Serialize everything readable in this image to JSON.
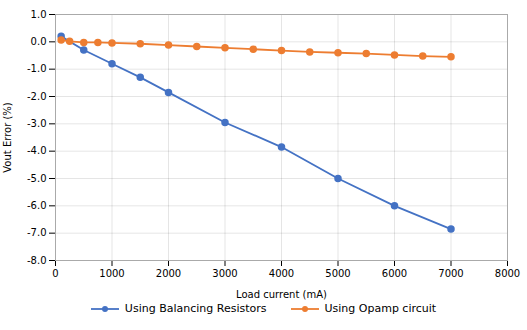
{
  "chart_data": {
    "type": "line",
    "xlabel": "Load current (mA)",
    "ylabel": "Vout Error (%)",
    "series": [
      {
        "name": "Using Balancing Resistors",
        "color": "#4472c4",
        "marker": "circle",
        "x": [
          100,
          500,
          1000,
          1500,
          2000,
          3000,
          4000,
          5000,
          6000,
          7000
        ],
        "values": [
          0.2,
          -0.3,
          -0.8,
          -1.3,
          -1.85,
          -2.95,
          -3.85,
          -5.0,
          -6.0,
          -6.85
        ]
      },
      {
        "name": "Using Opamp circuit",
        "color": "#ed7d31",
        "marker": "circle",
        "x": [
          100,
          250,
          500,
          750,
          1000,
          1500,
          2000,
          2500,
          3000,
          3500,
          4000,
          4500,
          5000,
          5500,
          6000,
          6500,
          7000
        ],
        "values": [
          0.07,
          0.02,
          -0.02,
          -0.02,
          -0.04,
          -0.07,
          -0.12,
          -0.17,
          -0.22,
          -0.27,
          -0.32,
          -0.37,
          -0.4,
          -0.43,
          -0.48,
          -0.52,
          -0.55
        ]
      }
    ],
    "xlim": [
      0,
      8000
    ],
    "xticks": [
      0,
      1000,
      2000,
      3000,
      4000,
      5000,
      6000,
      7000,
      8000
    ],
    "ylim": [
      -8.0,
      1.0
    ],
    "yticks": [
      {
        "value": -8,
        "label": "-8.0"
      },
      {
        "value": -7,
        "label": "-7.0"
      },
      {
        "value": -6,
        "label": "-6.0"
      },
      {
        "value": -5,
        "label": "-5.0"
      },
      {
        "value": -4,
        "label": "-4.0"
      },
      {
        "value": -3,
        "label": "-3.0"
      },
      {
        "value": -2,
        "label": "-2.0"
      },
      {
        "value": -1,
        "label": "-1.0"
      },
      {
        "value": 0,
        "label": "0.0"
      },
      {
        "value": 1,
        "label": "1.0"
      }
    ],
    "grid": true,
    "legend": "bottom"
  }
}
